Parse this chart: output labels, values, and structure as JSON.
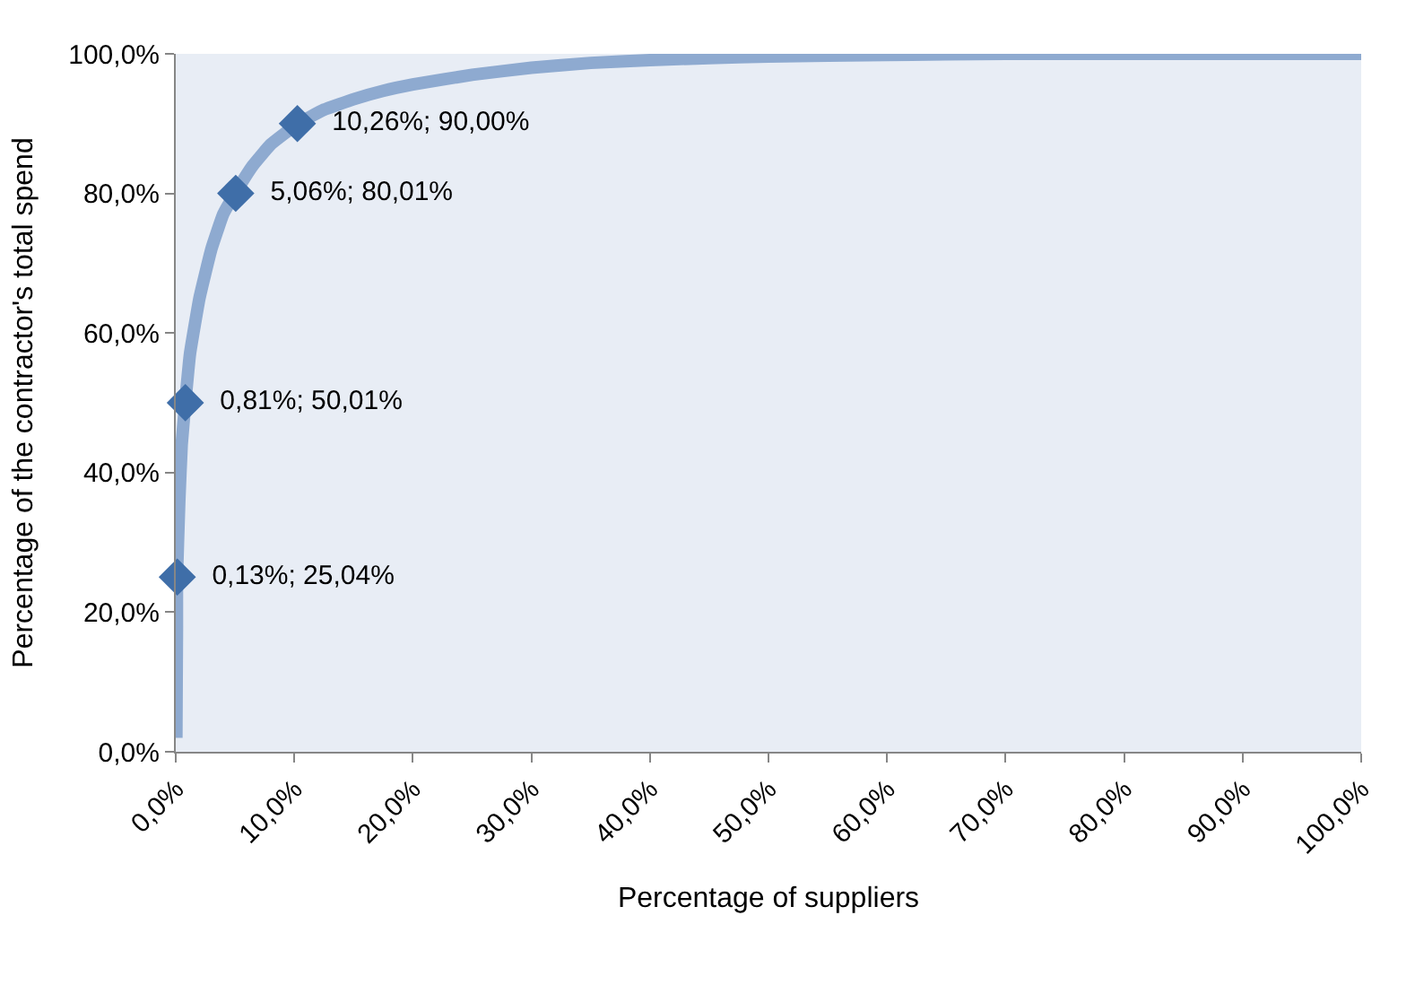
{
  "chart_data": {
    "type": "line",
    "xlabel": "Percentage of suppliers",
    "ylabel": "Percentage of the contractor's total spend",
    "series": [
      {
        "color": "#8eaad0",
        "line_style": "solid",
        "marker": "none",
        "x": [
          0.05,
          0.1,
          0.1,
          0.3,
          0.5,
          0.8,
          1.2,
          2,
          3,
          4,
          5,
          6.5,
          8,
          10.3,
          12.5,
          15,
          17.5,
          20,
          25,
          30,
          35,
          40,
          45,
          50,
          60,
          70,
          80,
          90,
          100
        ],
        "values": [
          2,
          18,
          25,
          36,
          44,
          50,
          57,
          65,
          72,
          77,
          80,
          84,
          87,
          90,
          92,
          93.5,
          94.7,
          95.6,
          97,
          98,
          98.7,
          99.1,
          99.4,
          99.6,
          99.85,
          100,
          100,
          100,
          100
        ]
      },
      {
        "type": "scatter",
        "color": "#3f6ea8",
        "marker": "diamond",
        "x": [
          0.13,
          0.81,
          5.06,
          10.26
        ],
        "values": [
          25.04,
          50.01,
          80.01,
          90.0
        ],
        "value_labels": [
          "0,13%; 25,04%",
          "0,81%; 50,01%",
          "5,06%; 80,01%",
          "10,26%; 90,00%"
        ]
      }
    ],
    "xlim": [
      0,
      100
    ],
    "xticks": [
      {
        "value": 0,
        "label": "0,0%"
      },
      {
        "value": 10,
        "label": "10,0%"
      },
      {
        "value": 20,
        "label": "20,0%"
      },
      {
        "value": 30,
        "label": "30,0%"
      },
      {
        "value": 40,
        "label": "40,0%"
      },
      {
        "value": 50,
        "label": "50,0%"
      },
      {
        "value": 60,
        "label": "60,0%"
      },
      {
        "value": 70,
        "label": "70,0%"
      },
      {
        "value": 80,
        "label": "80,0%"
      },
      {
        "value": 90,
        "label": "90,0%"
      },
      {
        "value": 100,
        "label": "100,0%"
      }
    ],
    "ylim": [
      0,
      100
    ],
    "yticks": [
      {
        "value": 0,
        "label": "0,0%"
      },
      {
        "value": 20,
        "label": "20,0%"
      },
      {
        "value": 40,
        "label": "40,0%"
      },
      {
        "value": 60,
        "label": "60,0%"
      },
      {
        "value": 80,
        "label": "80,0%"
      },
      {
        "value": 100,
        "label": "100,0%"
      }
    ],
    "grid": false,
    "legend": false
  }
}
